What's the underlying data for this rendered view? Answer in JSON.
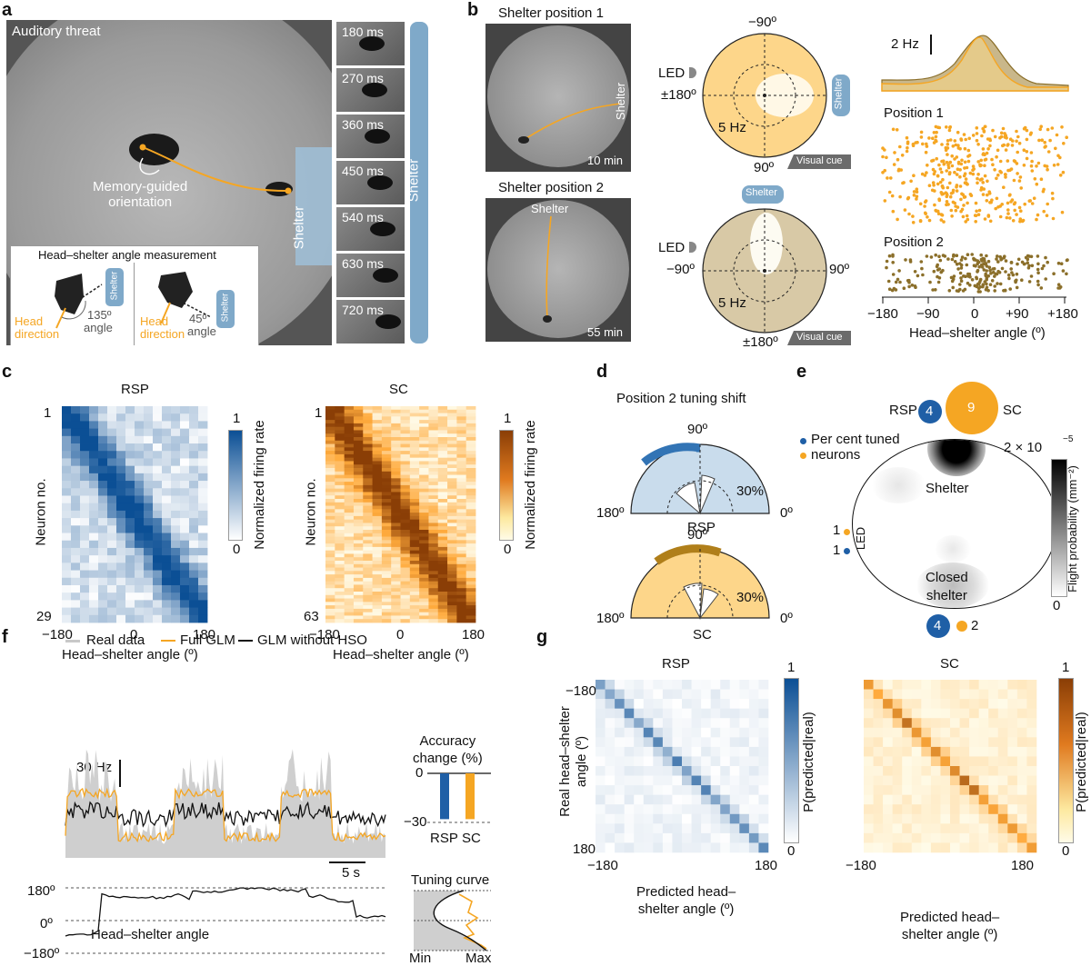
{
  "panels": {
    "a": "a",
    "b": "b",
    "c": "c",
    "d": "d",
    "e": "e",
    "f": "f",
    "g": "g"
  },
  "a": {
    "title": "Auditory threat",
    "annotation": "Memory-guided\norientation",
    "shelter": "Shelter",
    "shelter_bar": "Shelter",
    "frames": [
      "180 ms",
      "270 ms",
      "360 ms",
      "450 ms",
      "540 ms",
      "630 ms",
      "720 ms"
    ],
    "inset_title": "Head–shelter angle measurement",
    "inset_left": {
      "head": "Head",
      "direction": "direction",
      "angle": "135º",
      "angle_word": "angle",
      "shelter": "Shelter"
    },
    "inset_right": {
      "head": "Head",
      "direction": "direction",
      "angle": "45º",
      "angle_word": "angle",
      "shelter": "Shelter"
    }
  },
  "b": {
    "pos1_title": "Shelter position 1",
    "pos2_title": "Shelter position 2",
    "time1": "10 min",
    "time2": "55 min",
    "shelter": "Shelter",
    "led": "LED",
    "polar1": {
      "top": "−90º",
      "left": "±180º",
      "bottom": "90º",
      "hz": "5 Hz",
      "cue": "Visual cue",
      "shelter": "Shelter"
    },
    "polar2": {
      "left": "−90º",
      "right": "90º",
      "bottom": "±180º",
      "hz": "5 Hz",
      "cue": "Visual cue",
      "shelter": "Shelter"
    },
    "hist_scale": "2 Hz",
    "raster1": "Position 1",
    "raster2": "Position 2",
    "x_ticks": [
      "−180",
      "−90",
      "0",
      "+90",
      "+180"
    ],
    "xlabel": "Head–shelter angle (º)"
  },
  "c": {
    "rsp_title": "RSP",
    "sc_title": "SC",
    "ylabel": "Neuron no.",
    "rsp_y": [
      "1",
      "29"
    ],
    "sc_y": [
      "1",
      "63"
    ],
    "x_ticks": [
      "−180",
      "0",
      "180"
    ],
    "xlabel": "Head–shelter angle (º)",
    "cbar_label": "Normalized firing rate",
    "cbar_ticks": [
      "1",
      "0"
    ]
  },
  "d": {
    "title": "Position 2 tuning shift",
    "top_label": "90º",
    "left_label": "180º",
    "right_label": "0º",
    "pct": "30%",
    "rsp": "RSP",
    "sc": "SC"
  },
  "e": {
    "rsp": "RSP",
    "sc": "SC",
    "rsp_n": "4",
    "sc_n": "9",
    "legend1": "Per cent tuned",
    "legend2": "neurons",
    "shelter": "Shelter",
    "closed": "Closed\nshelter",
    "led": "LED",
    "led_sc": "1",
    "led_rsp": "1",
    "bottom_rsp": "4",
    "bottom_sc": "2",
    "cbar_top": "2 × 10",
    "cbar_exp": "−5",
    "cbar_bottom": "0",
    "cbar_label": "Flight probability (mm⁻²)"
  },
  "f": {
    "legend": [
      "Real data",
      "Full GLM",
      "GLM without HSO"
    ],
    "scale_hz": "30 Hz",
    "scale_time": "5 s",
    "angle_ticks": [
      "180º",
      "0º",
      "−180º"
    ],
    "angle_label": "Head–shelter angle",
    "bar_title": "Accuracy\nchange (%)",
    "bar_ticks": [
      "0",
      "−30"
    ],
    "bar_labels": [
      "RSP",
      "SC"
    ],
    "tuning_title": "Tuning curve",
    "tuning_min": "Min",
    "tuning_max": "Max"
  },
  "g": {
    "rsp_title": "RSP",
    "sc_title": "SC",
    "ylabel": "Real head–shelter\nangle (º)",
    "y_ticks": [
      "−180",
      "180"
    ],
    "x_ticks": [
      "−180",
      "180"
    ],
    "xlabel": "Predicted head–\nshelter angle (º)",
    "cbar_label": "P(predicted|real)",
    "cbar_ticks": [
      "1",
      "0"
    ]
  },
  "chart_data": [
    {
      "type": "bar",
      "title": "Accuracy change (%)",
      "categories": [
        "RSP",
        "SC"
      ],
      "values": [
        -28,
        -28
      ],
      "ylim": [
        -30,
        0
      ],
      "colors": [
        "#1f5fa6",
        "#f5a623"
      ]
    },
    {
      "type": "heatmap",
      "title": "RSP",
      "xlabel": "Predicted head–shelter angle (º)",
      "ylabel": "Real head–shelter angle (º)",
      "range": [
        -180,
        180
      ],
      "pattern": "diagonal"
    },
    {
      "type": "heatmap",
      "title": "SC",
      "xlabel": "Predicted head–shelter angle (º)",
      "ylabel": "Real head–shelter angle (º)",
      "range": [
        -180,
        180
      ],
      "pattern": "diagonal"
    },
    {
      "type": "heatmap",
      "title": "RSP",
      "ylabel": "Neuron no.",
      "xlabel": "Head–shelter angle (º)",
      "neurons": 29,
      "xlim": [
        -180,
        180
      ]
    },
    {
      "type": "heatmap",
      "title": "SC",
      "ylabel": "Neuron no.",
      "xlabel": "Head–shelter angle (º)",
      "neurons": 63,
      "xlim": [
        -180,
        180
      ]
    }
  ],
  "colors": {
    "rsp": "#1f5fa6",
    "sc": "#f5a623",
    "sc_dark": "#b07f1a",
    "shelter": "#7fa9c9",
    "tan": "#d8c9a6"
  }
}
